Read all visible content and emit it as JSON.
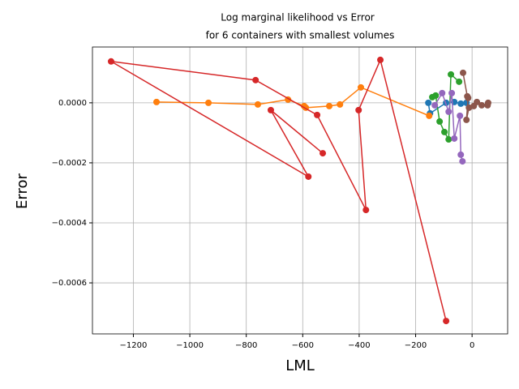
{
  "chart_data": {
    "type": "line",
    "title": [
      "Log marginal likelihood vs Error",
      "for 6 containers with smallest volumes"
    ],
    "x_label": "LML",
    "y_label": "Error",
    "xlim": [
      -1345,
      126
    ],
    "ylim": [
      -0.00077,
      0.000186
    ],
    "xticks": [
      {
        "value": -1200,
        "label": "−1200"
      },
      {
        "value": -1000,
        "label": "−1000"
      },
      {
        "value": -800,
        "label": "−800"
      },
      {
        "value": -600,
        "label": "−600"
      },
      {
        "value": -400,
        "label": "−400"
      },
      {
        "value": -200,
        "label": "−200"
      },
      0
    ],
    "yticks": [
      {
        "value": 0,
        "label": "0.0000"
      },
      {
        "value": -0.0002,
        "label": "−0.0002"
      },
      {
        "value": -0.0004,
        "label": "−0.0004"
      },
      {
        "value": -0.0006,
        "label": "−0.0006"
      }
    ],
    "grid": true,
    "series": [
      {
        "color": "#1f77b4",
        "x": [
          -155,
          -149,
          -92,
          -63,
          -40,
          -20
        ],
        "values": [
          0,
          -3.5e-05,
          0,
          2.7e-06,
          -2.7e-06,
          0
        ]
      },
      {
        "color": "#ff7f0e",
        "x": [
          -1118,
          -934,
          -759,
          -652,
          -595,
          -589,
          -506,
          -468,
          -394,
          -152
        ],
        "values": [
          2.7e-06,
          0,
          -5.4e-06,
          1.08e-05,
          -1.08e-05,
          -1.62e-05,
          -1.08e-05,
          -5.4e-06,
          5.14e-05,
          -4.32e-05
        ]
      },
      {
        "color": "#2ca02c",
        "x": [
          -141,
          -129,
          -115,
          -98,
          -83,
          -75,
          -46
        ],
        "values": [
          1.89e-05,
          2.43e-05,
          -6.22e-05,
          -9.73e-05,
          -0.000122,
          9.46e-05,
          7.03e-05
        ]
      },
      {
        "color": "#d62728",
        "x": [
          -92,
          -325,
          -402,
          -376,
          -549,
          -767,
          -1279,
          -580,
          -713,
          -529
        ],
        "values": [
          -0.000727,
          0.000143,
          -2.43e-05,
          -0.000357,
          -4.05e-05,
          7.57e-05,
          0.000138,
          -0.000246,
          -2.43e-05,
          -0.000168
        ]
      },
      {
        "color": "#9467bd",
        "x": [
          -132,
          -106,
          -83,
          -72,
          -63,
          -43,
          -40,
          -34
        ],
        "values": [
          -8.1e-06,
          3.24e-05,
          -2.97e-05,
          3.24e-05,
          -0.000119,
          -4.32e-05,
          -0.000173,
          -0.000195
        ]
      },
      {
        "color": "#8c564b",
        "x": [
          -32,
          -17,
          -14,
          -20,
          -11,
          6,
          17,
          34,
          55,
          57
        ],
        "values": [
          0.0001,
          2.16e-05,
          1.62e-05,
          -5.68e-05,
          -1.62e-05,
          -1.08e-05,
          2.7e-06,
          -8.1e-06,
          -8.1e-06,
          0
        ]
      }
    ]
  }
}
